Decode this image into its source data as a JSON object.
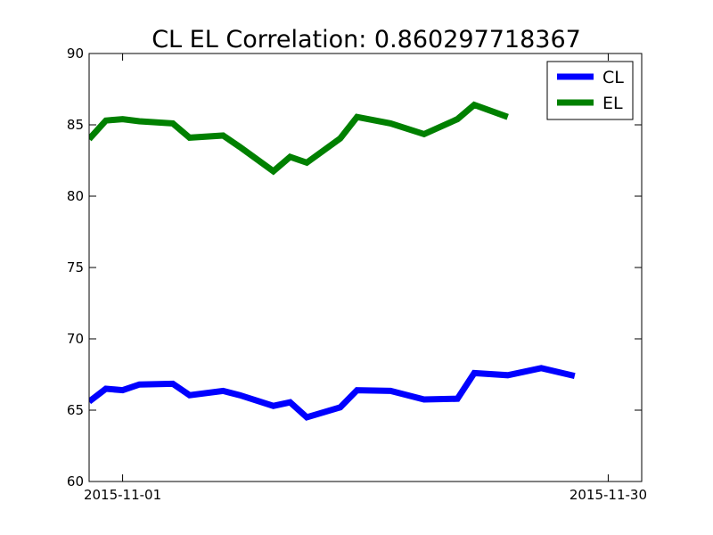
{
  "chart_data": {
    "type": "line",
    "title": "CL EL Correlation: 0.860297718367",
    "xlabel": "",
    "ylabel": "",
    "x": [
      "2015-10-30",
      "2015-10-31",
      "2015-11-01",
      "2015-11-02",
      "2015-11-04",
      "2015-11-05",
      "2015-11-07",
      "2015-11-08",
      "2015-11-10",
      "2015-11-11",
      "2015-11-12",
      "2015-11-14",
      "2015-11-15",
      "2015-11-17",
      "2015-11-19",
      "2015-11-21",
      "2015-11-22",
      "2015-11-24",
      "2015-11-26",
      "2015-11-28",
      "2015-11-29",
      "2015-11-30"
    ],
    "xlim": [
      "2015-10-30",
      "2015-12-02"
    ],
    "x_ticks": [
      "2015-11-01",
      "2015-11-30"
    ],
    "ylim": [
      60,
      90
    ],
    "y_ticks": [
      "60",
      "65",
      "70",
      "75",
      "80",
      "85",
      "90"
    ],
    "grid": false,
    "legend_position": "top-right",
    "series": [
      {
        "name": "CL",
        "color": "#0000ff",
        "values": [
          65.6,
          66.5,
          66.4,
          66.8,
          66.85,
          66.05,
          66.35,
          66.05,
          65.3,
          65.55,
          64.5,
          65.2,
          66.4,
          66.35,
          65.75,
          65.8,
          67.6,
          67.45,
          67.95,
          67.4,
          null,
          null
        ]
      },
      {
        "name": "EL",
        "color": "#008000",
        "values": [
          84.0,
          85.3,
          85.4,
          85.25,
          85.1,
          84.1,
          84.25,
          83.45,
          81.75,
          82.75,
          82.35,
          84.05,
          85.55,
          85.1,
          84.35,
          85.4,
          86.4,
          85.55,
          null,
          null,
          null,
          null
        ]
      }
    ]
  }
}
